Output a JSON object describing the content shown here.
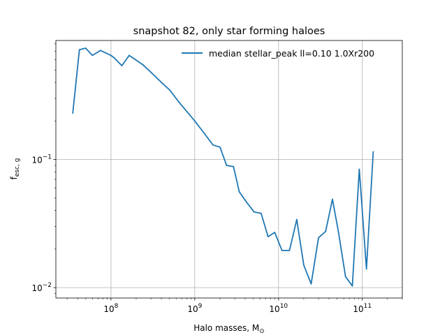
{
  "chart_data": {
    "type": "line",
    "title": "snapshot 82, only star forming haloes",
    "xlabel": "Halo masses, M",
    "xlabel_sub": "⊙",
    "ylabel": "f",
    "ylabel_sub": "esc, g",
    "xscale": "log",
    "yscale": "log",
    "xlim": [
      22000000,
      300000000000
    ],
    "ylim": [
      0.0083,
      0.85
    ],
    "grid": true,
    "legend_position": "top-right",
    "colors": {
      "series": "#1f77b4",
      "grid": "#b0b0b0",
      "axes": "#000000"
    },
    "x_ticks": [
      {
        "value": 100000000,
        "base": "10",
        "exp": "8"
      },
      {
        "value": 1000000000,
        "base": "10",
        "exp": "9"
      },
      {
        "value": 10000000000,
        "base": "10",
        "exp": "10"
      },
      {
        "value": 100000000000,
        "base": "10",
        "exp": "11"
      }
    ],
    "y_ticks": [
      {
        "value": 0.01,
        "base": "10",
        "exp": "−2"
      },
      {
        "value": 0.1,
        "base": "10",
        "exp": "−1"
      }
    ],
    "series": [
      {
        "name": "median stellar_peak ll=0.10 1.0Xr200",
        "points": [
          [
            35000000,
            0.23
          ],
          [
            42000000,
            0.72
          ],
          [
            50000000,
            0.74
          ],
          [
            60000000,
            0.65
          ],
          [
            75000000,
            0.71
          ],
          [
            100000000,
            0.65
          ],
          [
            110000000,
            0.62
          ],
          [
            135000000,
            0.54
          ],
          [
            165000000,
            0.65
          ],
          [
            240000000,
            0.55
          ],
          [
            300000000,
            0.48
          ],
          [
            400000000,
            0.4
          ],
          [
            500000000,
            0.35
          ],
          [
            650000000,
            0.28
          ],
          [
            1000000000,
            0.2
          ],
          [
            1300000000,
            0.16
          ],
          [
            1650000000,
            0.13
          ],
          [
            2000000000,
            0.125
          ],
          [
            2400000000,
            0.09
          ],
          [
            2900000000,
            0.088
          ],
          [
            3400000000,
            0.056
          ],
          [
            4100000000,
            0.047
          ],
          [
            5100000000,
            0.039
          ],
          [
            6200000000,
            0.038
          ],
          [
            7500000000,
            0.025
          ],
          [
            9000000000,
            0.027
          ],
          [
            11000000000,
            0.0195
          ],
          [
            13500000000,
            0.0195
          ],
          [
            16500000000,
            0.034
          ],
          [
            20000000000,
            0.015
          ],
          [
            24500000000,
            0.0107
          ],
          [
            30000000000,
            0.0245
          ],
          [
            36500000000,
            0.0275
          ],
          [
            44000000000,
            0.049
          ],
          [
            52000000000,
            0.027
          ],
          [
            63000000000,
            0.0122
          ],
          [
            76000000000,
            0.0103
          ],
          [
            92000000000,
            0.084
          ],
          [
            112000000000,
            0.014
          ],
          [
            135000000000,
            0.115
          ]
        ]
      }
    ]
  }
}
